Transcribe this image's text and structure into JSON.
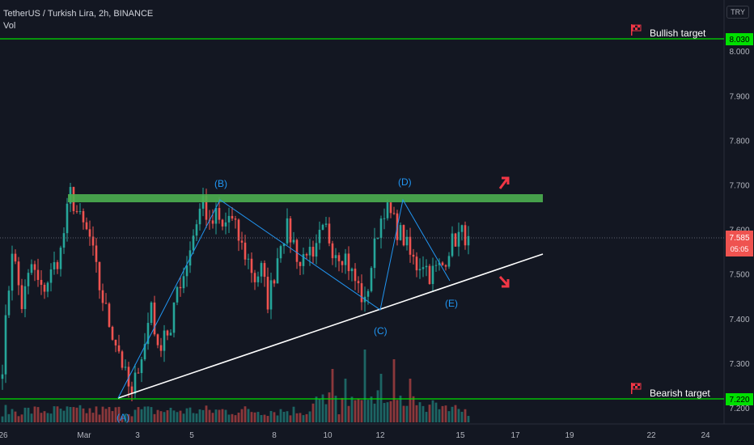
{
  "header": {
    "title": "TetherUS / Turkish Lira, 2h, BINANCE",
    "indicator": "Vol",
    "currency": "TRY"
  },
  "annotations": {
    "bullish_label": "Bullish target",
    "bearish_label": "Bearish target",
    "wave_labels": [
      "(A)",
      "(B)",
      "(C)",
      "(D)",
      "(E)"
    ],
    "bullish_level": "8.030",
    "bearish_level": "7.220",
    "price_label": "7.585",
    "countdown": "05:05"
  },
  "colors": {
    "background": "#131722",
    "up": "#26a69a",
    "down": "#ef5350",
    "target_line": "#00e000",
    "resistance": "#4caf50",
    "trendline": "#ffffff",
    "wave": "#2196f3",
    "arrow": "#f23645"
  },
  "chart_data": {
    "type": "candlestick",
    "symbol": "USDT/TRY",
    "interval": "2h",
    "ylim": [
      7.18,
      8.1
    ],
    "y_ticks": [
      "8.000",
      "7.900",
      "7.800",
      "7.700",
      "7.600",
      "7.500",
      "7.400",
      "7.300",
      "7.200"
    ],
    "x_ticks": [
      "26",
      "Mar",
      "3",
      "5",
      "8",
      "10",
      "12",
      "15",
      "17",
      "19",
      "22",
      "24"
    ],
    "levels": {
      "bullish_target": 8.03,
      "bearish_target": 7.22,
      "resistance": 7.675,
      "last_price": 7.585
    },
    "waves": [
      {
        "label": "(A)",
        "price": 7.22
      },
      {
        "label": "(B)",
        "price": 7.67
      },
      {
        "label": "(C)",
        "price": 7.42
      },
      {
        "label": "(D)",
        "price": 7.67
      },
      {
        "label": "(E)",
        "price": 7.48
      }
    ],
    "anchors": [
      [
        0,
        7.3
      ],
      [
        3,
        7.56
      ],
      [
        6,
        7.43
      ],
      [
        9,
        7.52
      ],
      [
        12,
        7.46
      ],
      [
        15,
        7.5
      ],
      [
        18,
        7.55
      ],
      [
        21,
        7.68
      ],
      [
        24,
        7.62
      ],
      [
        27,
        7.58
      ],
      [
        30,
        7.47
      ],
      [
        33,
        7.39
      ],
      [
        36,
        7.33
      ],
      [
        38,
        7.27
      ],
      [
        40,
        7.22
      ],
      [
        42,
        7.3
      ],
      [
        44,
        7.34
      ],
      [
        46,
        7.44
      ],
      [
        48,
        7.32
      ],
      [
        50,
        7.38
      ],
      [
        52,
        7.36
      ],
      [
        54,
        7.47
      ],
      [
        56,
        7.5
      ],
      [
        58,
        7.56
      ],
      [
        60,
        7.62
      ],
      [
        62,
        7.67
      ],
      [
        64,
        7.6
      ],
      [
        66,
        7.63
      ],
      [
        68,
        7.6
      ],
      [
        70,
        7.63
      ],
      [
        72,
        7.6
      ],
      [
        74,
        7.56
      ],
      [
        76,
        7.53
      ],
      [
        78,
        7.49
      ],
      [
        80,
        7.51
      ],
      [
        82,
        7.44
      ],
      [
        84,
        7.5
      ],
      [
        86,
        7.58
      ],
      [
        88,
        7.6
      ],
      [
        90,
        7.57
      ],
      [
        92,
        7.52
      ],
      [
        94,
        7.56
      ],
      [
        96,
        7.52
      ],
      [
        98,
        7.58
      ],
      [
        100,
        7.6
      ],
      [
        102,
        7.56
      ],
      [
        104,
        7.55
      ],
      [
        106,
        7.54
      ],
      [
        108,
        7.5
      ],
      [
        110,
        7.47
      ],
      [
        112,
        7.43
      ],
      [
        114,
        7.52
      ],
      [
        116,
        7.6
      ],
      [
        118,
        7.65
      ],
      [
        120,
        7.63
      ],
      [
        122,
        7.6
      ],
      [
        124,
        7.58
      ],
      [
        126,
        7.54
      ],
      [
        128,
        7.52
      ],
      [
        130,
        7.53
      ],
      [
        132,
        7.5
      ],
      [
        134,
        7.51
      ],
      [
        136,
        7.52
      ],
      [
        138,
        7.56
      ],
      [
        140,
        7.58
      ],
      [
        142,
        7.59
      ],
      [
        144,
        7.585
      ]
    ],
    "volume_spikes": [
      [
        102,
        0.55
      ],
      [
        106,
        0.45
      ],
      [
        112,
        0.75
      ],
      [
        117,
        0.5
      ],
      [
        121,
        0.65
      ],
      [
        126,
        0.45
      ]
    ]
  }
}
